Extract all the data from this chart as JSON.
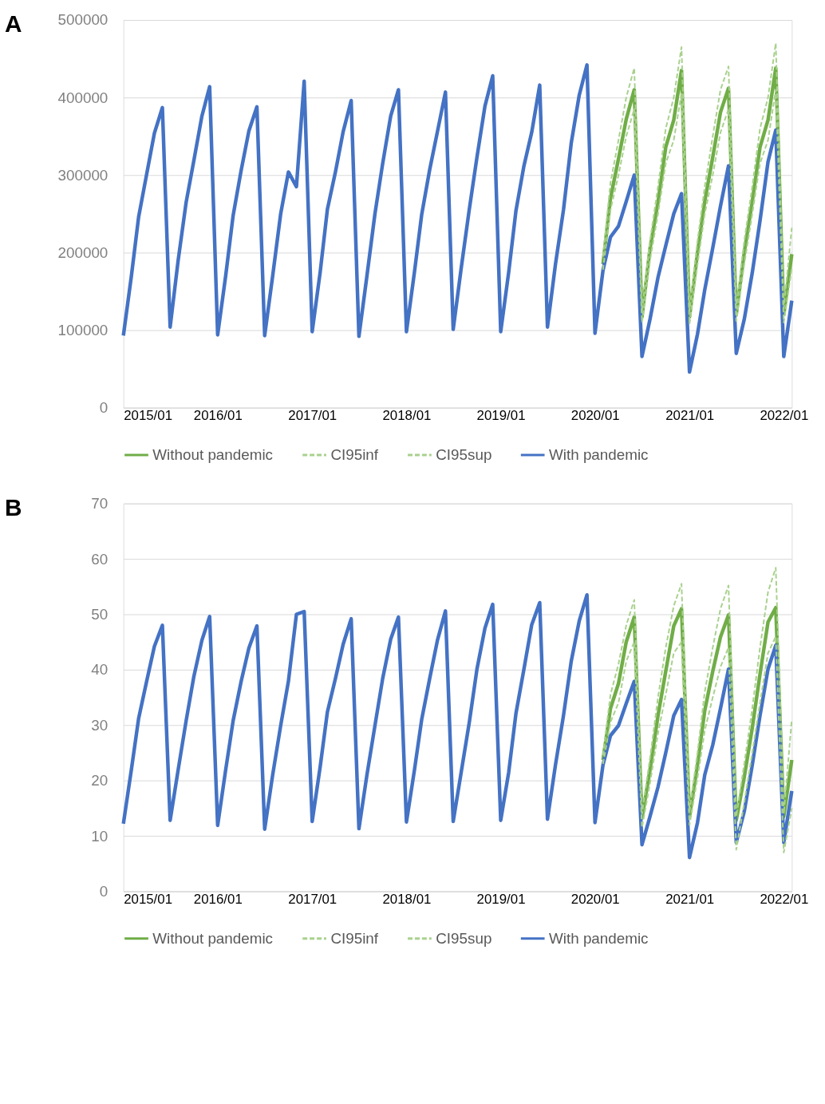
{
  "chart_data": [
    {
      "type": "line",
      "title": "A",
      "legend": "bottom",
      "grid": "y",
      "x": [
        "2015-01",
        "2015-02",
        "2015-03",
        "2015-04",
        "2015-05",
        "2015-06",
        "2015-07",
        "2015-08",
        "2015-09",
        "2015-10",
        "2015-11",
        "2015-12",
        "2016-01",
        "2016-02",
        "2016-03",
        "2016-04",
        "2016-05",
        "2016-06",
        "2016-07",
        "2016-08",
        "2016-09",
        "2016-10",
        "2016-11",
        "2016-12",
        "2017-01",
        "2017-02",
        "2017-03",
        "2017-04",
        "2017-05",
        "2017-06",
        "2017-07",
        "2017-08",
        "2017-09",
        "2017-10",
        "2017-11",
        "2017-12",
        "2018-01",
        "2018-02",
        "2018-03",
        "2018-04",
        "2018-05",
        "2018-06",
        "2018-07",
        "2018-08",
        "2018-09",
        "2018-10",
        "2018-11",
        "2018-12",
        "2019-01",
        "2019-02",
        "2019-03",
        "2019-04",
        "2019-05",
        "2019-06",
        "2019-07",
        "2019-08",
        "2019-09",
        "2019-10",
        "2019-11",
        "2019-12",
        "2020-01",
        "2020-02",
        "2020-03",
        "2020-04",
        "2020-05",
        "2020-06",
        "2020-07",
        "2020-08",
        "2020-09",
        "2020-10",
        "2020-11",
        "2020-12",
        "2021-01",
        "2021-02",
        "2021-03",
        "2021-04",
        "2021-05",
        "2021-06",
        "2021-07",
        "2021-08",
        "2021-09",
        "2021-10",
        "2021-11",
        "2021-12",
        "2022-01",
        "2022-02"
      ],
      "xlim": [
        "2015-01",
        "2022-02"
      ],
      "xticks": [
        {
          "value": "2015-01",
          "label": "2015/01"
        },
        {
          "value": "2016-01",
          "label": "2016/01"
        },
        {
          "value": "2017-01",
          "label": "2017/01"
        },
        {
          "value": "2018-01",
          "label": "2018/01"
        },
        {
          "value": "2019-01",
          "label": "2019/01"
        },
        {
          "value": "2020-01",
          "label": "2020/01"
        },
        {
          "value": "2021-01",
          "label": "2021/01"
        },
        {
          "value": "2022-01",
          "label": "2022/01"
        }
      ],
      "ylim": [
        0,
        500000
      ],
      "yticks": [
        0,
        100000,
        200000,
        300000,
        400000,
        500000
      ],
      "series": [
        {
          "name": "Without pandemic",
          "color": "#70ad47",
          "line_style": "solid",
          "x": [
            "2020-02",
            "2020-03",
            "2020-04",
            "2020-05",
            "2020-06",
            "2020-07",
            "2020-08",
            "2020-09",
            "2020-10",
            "2020-11",
            "2020-12",
            "2021-01",
            "2021-02",
            "2021-03",
            "2021-04",
            "2021-05",
            "2021-06",
            "2021-07",
            "2021-08",
            "2021-09",
            "2021-10",
            "2021-11",
            "2021-12",
            "2022-01",
            "2022-02"
          ],
          "values": [
            185000,
            270000,
            321000,
            372000,
            410000,
            117000,
            205000,
            265000,
            336000,
            371000,
            435000,
            117000,
            200000,
            266000,
            323000,
            381000,
            412000,
            120000,
            200000,
            266000,
            336000,
            371000,
            438000,
            120000,
            198000
          ]
        },
        {
          "name": "CI95inf",
          "color": "#a9d18e",
          "line_style": "dashed",
          "x": [
            "2020-02",
            "2020-03",
            "2020-04",
            "2020-05",
            "2020-06",
            "2020-07",
            "2020-08",
            "2020-09",
            "2020-10",
            "2020-11",
            "2020-12",
            "2021-01",
            "2021-02",
            "2021-03",
            "2021-04",
            "2021-05",
            "2021-06",
            "2021-07",
            "2021-08",
            "2021-09",
            "2021-10",
            "2021-11",
            "2021-12",
            "2022-01",
            "2022-02"
          ],
          "values": [
            178000,
            255000,
            300000,
            350000,
            385000,
            110000,
            190000,
            250000,
            315000,
            345000,
            405000,
            108000,
            185000,
            250000,
            300000,
            355000,
            385000,
            112000,
            185000,
            250000,
            315000,
            345000,
            410000,
            110000,
            180000
          ]
        },
        {
          "name": "CI95sup",
          "color": "#a9d18e",
          "line_style": "dashed",
          "x": [
            "2020-02",
            "2020-03",
            "2020-04",
            "2020-05",
            "2020-06",
            "2020-07",
            "2020-08",
            "2020-09",
            "2020-10",
            "2020-11",
            "2020-12",
            "2021-01",
            "2021-02",
            "2021-03",
            "2021-04",
            "2021-05",
            "2021-06",
            "2021-07",
            "2021-08",
            "2021-09",
            "2021-10",
            "2021-11",
            "2021-12",
            "2022-01",
            "2022-02"
          ],
          "values": [
            195000,
            290000,
            345000,
            400000,
            438000,
            125000,
            215000,
            285000,
            360000,
            400000,
            465000,
            125000,
            215000,
            285000,
            350000,
            410000,
            440000,
            128000,
            215000,
            285000,
            360000,
            400000,
            470000,
            128000,
            232000
          ]
        },
        {
          "name": "With pandemic",
          "color": "#4472c4",
          "line_style": "solid",
          "values": [
            93000,
            170000,
            246000,
            301000,
            354000,
            387000,
            104000,
            190000,
            265000,
            319000,
            376000,
            414000,
            94000,
            170000,
            248000,
            306000,
            357000,
            388000,
            93000,
            170000,
            250000,
            304000,
            285000,
            421000,
            98000,
            175000,
            256000,
            304000,
            356000,
            396000,
            92000,
            170000,
            250000,
            315000,
            376000,
            410000,
            98000,
            175000,
            249000,
            307000,
            356000,
            407000,
            101000,
            180000,
            255000,
            323000,
            389000,
            428000,
            98000,
            175000,
            254000,
            312000,
            355000,
            416000,
            104000,
            185000,
            255000,
            341000,
            403000,
            442000,
            96000,
            177000,
            220000,
            234000,
            266000,
            300000,
            66000,
            114000,
            168000,
            209000,
            250000,
            276000,
            46000,
            95000,
            152000,
            206000,
            260000,
            312000,
            70000,
            114000,
            174000,
            241000,
            317000,
            358000,
            66000,
            138000
          ]
        }
      ]
    },
    {
      "type": "line",
      "title": "B",
      "legend": "bottom",
      "grid": "y",
      "x": [
        "2015-01",
        "2015-02",
        "2015-03",
        "2015-04",
        "2015-05",
        "2015-06",
        "2015-07",
        "2015-08",
        "2015-09",
        "2015-10",
        "2015-11",
        "2015-12",
        "2016-01",
        "2016-02",
        "2016-03",
        "2016-04",
        "2016-05",
        "2016-06",
        "2016-07",
        "2016-08",
        "2016-09",
        "2016-10",
        "2016-11",
        "2016-12",
        "2017-01",
        "2017-02",
        "2017-03",
        "2017-04",
        "2017-05",
        "2017-06",
        "2017-07",
        "2017-08",
        "2017-09",
        "2017-10",
        "2017-11",
        "2017-12",
        "2018-01",
        "2018-02",
        "2018-03",
        "2018-04",
        "2018-05",
        "2018-06",
        "2018-07",
        "2018-08",
        "2018-09",
        "2018-10",
        "2018-11",
        "2018-12",
        "2019-01",
        "2019-02",
        "2019-03",
        "2019-04",
        "2019-05",
        "2019-06",
        "2019-07",
        "2019-08",
        "2019-09",
        "2019-10",
        "2019-11",
        "2019-12",
        "2020-01",
        "2020-02",
        "2020-03",
        "2020-04",
        "2020-05",
        "2020-06",
        "2020-07",
        "2020-08",
        "2020-09",
        "2020-10",
        "2020-11",
        "2020-12",
        "2021-01",
        "2021-02",
        "2021-03",
        "2021-04",
        "2021-05",
        "2021-06",
        "2021-07",
        "2021-08",
        "2021-09",
        "2021-10",
        "2021-11",
        "2021-12",
        "2022-01",
        "2022-02"
      ],
      "xlim": [
        "2015-01",
        "2022-02"
      ],
      "xticks": [
        {
          "value": "2015-01",
          "label": "2015/01"
        },
        {
          "value": "2016-01",
          "label": "2016/01"
        },
        {
          "value": "2017-01",
          "label": "2017/01"
        },
        {
          "value": "2018-01",
          "label": "2018/01"
        },
        {
          "value": "2019-01",
          "label": "2019/01"
        },
        {
          "value": "2020-01",
          "label": "2020/01"
        },
        {
          "value": "2021-01",
          "label": "2021/01"
        },
        {
          "value": "2022-01",
          "label": "2022/01"
        }
      ],
      "ylim": [
        0,
        70
      ],
      "yticks": [
        0,
        10,
        20,
        30,
        40,
        50,
        60,
        70
      ],
      "series": [
        {
          "name": "Without pandemic",
          "color": "#70ad47",
          "line_style": "solid",
          "x": [
            "2020-02",
            "2020-03",
            "2020-04",
            "2020-05",
            "2020-06",
            "2020-07",
            "2020-08",
            "2020-09",
            "2020-10",
            "2020-11",
            "2020-12",
            "2021-01",
            "2021-02",
            "2021-03",
            "2021-04",
            "2021-05",
            "2021-06",
            "2021-07",
            "2021-08",
            "2021-09",
            "2021-10",
            "2021-11",
            "2021-12",
            "2022-01",
            "2022-02"
          ],
          "values": [
            23.7,
            33.0,
            37.5,
            45.0,
            49.5,
            13.2,
            21.9,
            31.7,
            39.7,
            47.9,
            51.0,
            13.5,
            22.8,
            32.6,
            39.7,
            45.9,
            49.9,
            12.8,
            20.6,
            29.5,
            39.2,
            48.6,
            51.2,
            13.5,
            23.7
          ]
        },
        {
          "name": "CI95inf",
          "color": "#a9d18e",
          "line_style": "dashed",
          "x": [
            "2020-02",
            "2020-03",
            "2020-04",
            "2020-05",
            "2020-06",
            "2020-07",
            "2020-08",
            "2020-09",
            "2020-10",
            "2020-11",
            "2020-12",
            "2021-01",
            "2021-02",
            "2021-03",
            "2021-04",
            "2021-05",
            "2021-06",
            "2021-07",
            "2021-08",
            "2021-09",
            "2021-10",
            "2021-11",
            "2021-12",
            "2022-01",
            "2022-02"
          ],
          "values": [
            23.0,
            30.5,
            34.0,
            41.5,
            45.0,
            11.5,
            19.5,
            28.5,
            35.5,
            43.0,
            45.0,
            12.0,
            20.5,
            29.0,
            35.0,
            40.5,
            44.0,
            7.5,
            16.0,
            25.0,
            34.0,
            43.0,
            46.0,
            7.0,
            15.0
          ]
        },
        {
          "name": "CI95sup",
          "color": "#a9d18e",
          "line_style": "dashed",
          "x": [
            "2020-02",
            "2020-03",
            "2020-04",
            "2020-05",
            "2020-06",
            "2020-07",
            "2020-08",
            "2020-09",
            "2020-10",
            "2020-11",
            "2020-12",
            "2021-01",
            "2021-02",
            "2021-03",
            "2021-04",
            "2021-05",
            "2021-06",
            "2021-07",
            "2021-08",
            "2021-09",
            "2021-10",
            "2021-11",
            "2021-12",
            "2022-01",
            "2022-02"
          ],
          "values": [
            24.5,
            35.5,
            41.0,
            48.0,
            52.6,
            14.0,
            24.0,
            35.0,
            44.0,
            51.5,
            55.5,
            14.5,
            25.0,
            36.0,
            44.0,
            51.0,
            55.2,
            13.5,
            23.0,
            33.0,
            44.0,
            54.0,
            58.4,
            14.0,
            31.0
          ]
        },
        {
          "name": "With pandemic",
          "color": "#4472c4",
          "line_style": "solid",
          "values": [
            12.2,
            22.0,
            31.2,
            37.9,
            44.2,
            48.0,
            12.8,
            21.9,
            30.8,
            38.8,
            45.3,
            49.6,
            11.9,
            21.9,
            30.8,
            37.9,
            43.9,
            47.9,
            11.2,
            21.0,
            29.9,
            37.9,
            50.0,
            50.5,
            12.6,
            22.5,
            32.4,
            38.4,
            44.6,
            49.2,
            11.3,
            21.0,
            29.9,
            38.4,
            45.5,
            49.5,
            12.5,
            21.9,
            31.0,
            38.4,
            45.3,
            50.6,
            12.6,
            21.5,
            30.4,
            40.1,
            47.5,
            51.8,
            12.8,
            21.5,
            32.1,
            40.1,
            48.1,
            52.1,
            13.0,
            22.8,
            31.7,
            41.5,
            48.8,
            53.5,
            12.4,
            22.8,
            28.1,
            29.9,
            33.9,
            37.9,
            8.4,
            13.5,
            18.8,
            25.0,
            31.7,
            34.6,
            6.1,
            12.4,
            21.0,
            26.4,
            33.0,
            40.1,
            8.8,
            14.4,
            22.8,
            31.7,
            40.1,
            44.4,
            8.8,
            18.1
          ]
        }
      ]
    }
  ]
}
